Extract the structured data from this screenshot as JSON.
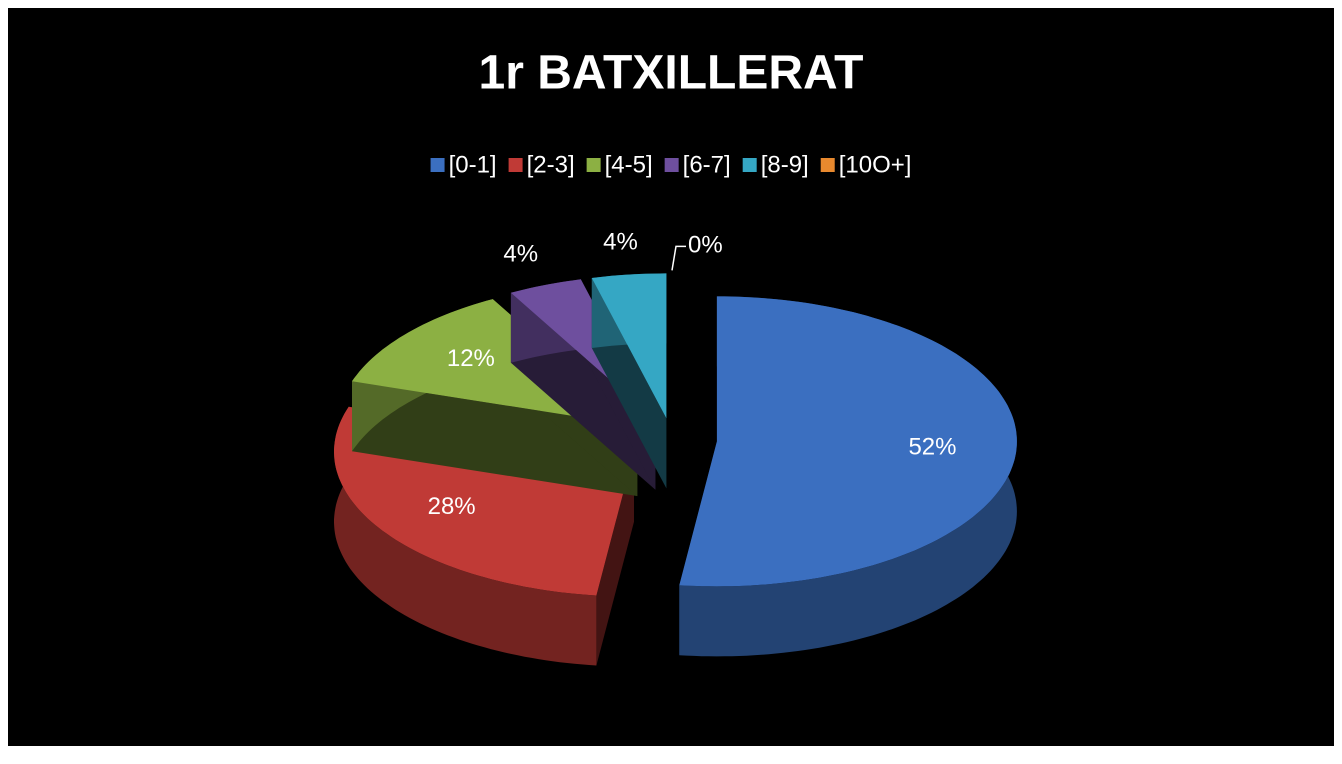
{
  "chart_data": {
    "type": "pie",
    "title": "1r BATXILLERAT",
    "categories": [
      "[0-1]",
      "[2-3]",
      "[4-5]",
      "[6-7]",
      "[8-9]",
      "[10O+]"
    ],
    "values": [
      52,
      28,
      12,
      4,
      4,
      0
    ],
    "value_labels": [
      "52%",
      "28%",
      "12%",
      "4%",
      "4%",
      "0%"
    ],
    "colors": [
      "#3b6fc0",
      "#c03a36",
      "#8cb043",
      "#6e4f9e",
      "#35a7c4",
      "#e8892e"
    ],
    "legend": "top"
  }
}
